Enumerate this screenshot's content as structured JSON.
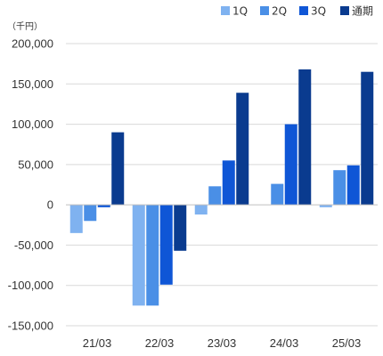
{
  "chart_data": {
    "type": "bar",
    "unit_label": "（千円）",
    "categories": [
      "21/03",
      "22/03",
      "23/03",
      "24/03",
      "25/03"
    ],
    "series": [
      {
        "name": "1Q",
        "color": "#7fb2f0",
        "values": [
          -35000,
          -125000,
          -12000,
          0,
          -3000
        ]
      },
      {
        "name": "2Q",
        "color": "#4a8fe6",
        "values": [
          -20000,
          -125000,
          23000,
          26000,
          43000
        ]
      },
      {
        "name": "3Q",
        "color": "#0f56d6",
        "values": [
          -3000,
          -99000,
          55000,
          100000,
          49000
        ]
      },
      {
        "name": "通期",
        "color": "#0a3b8f",
        "values": [
          90000,
          -57000,
          139000,
          168000,
          165000
        ]
      }
    ],
    "yticks": [
      "200,000",
      "150,000",
      "100,000",
      "50,000",
      "0",
      "-50,000",
      "-100,000",
      "-150,000"
    ],
    "ytick_values": [
      200000,
      150000,
      100000,
      50000,
      0,
      -50000,
      -100000,
      -150000
    ],
    "ylim": [
      -150000,
      200000
    ],
    "grid": true,
    "legend_position": "top-right"
  }
}
